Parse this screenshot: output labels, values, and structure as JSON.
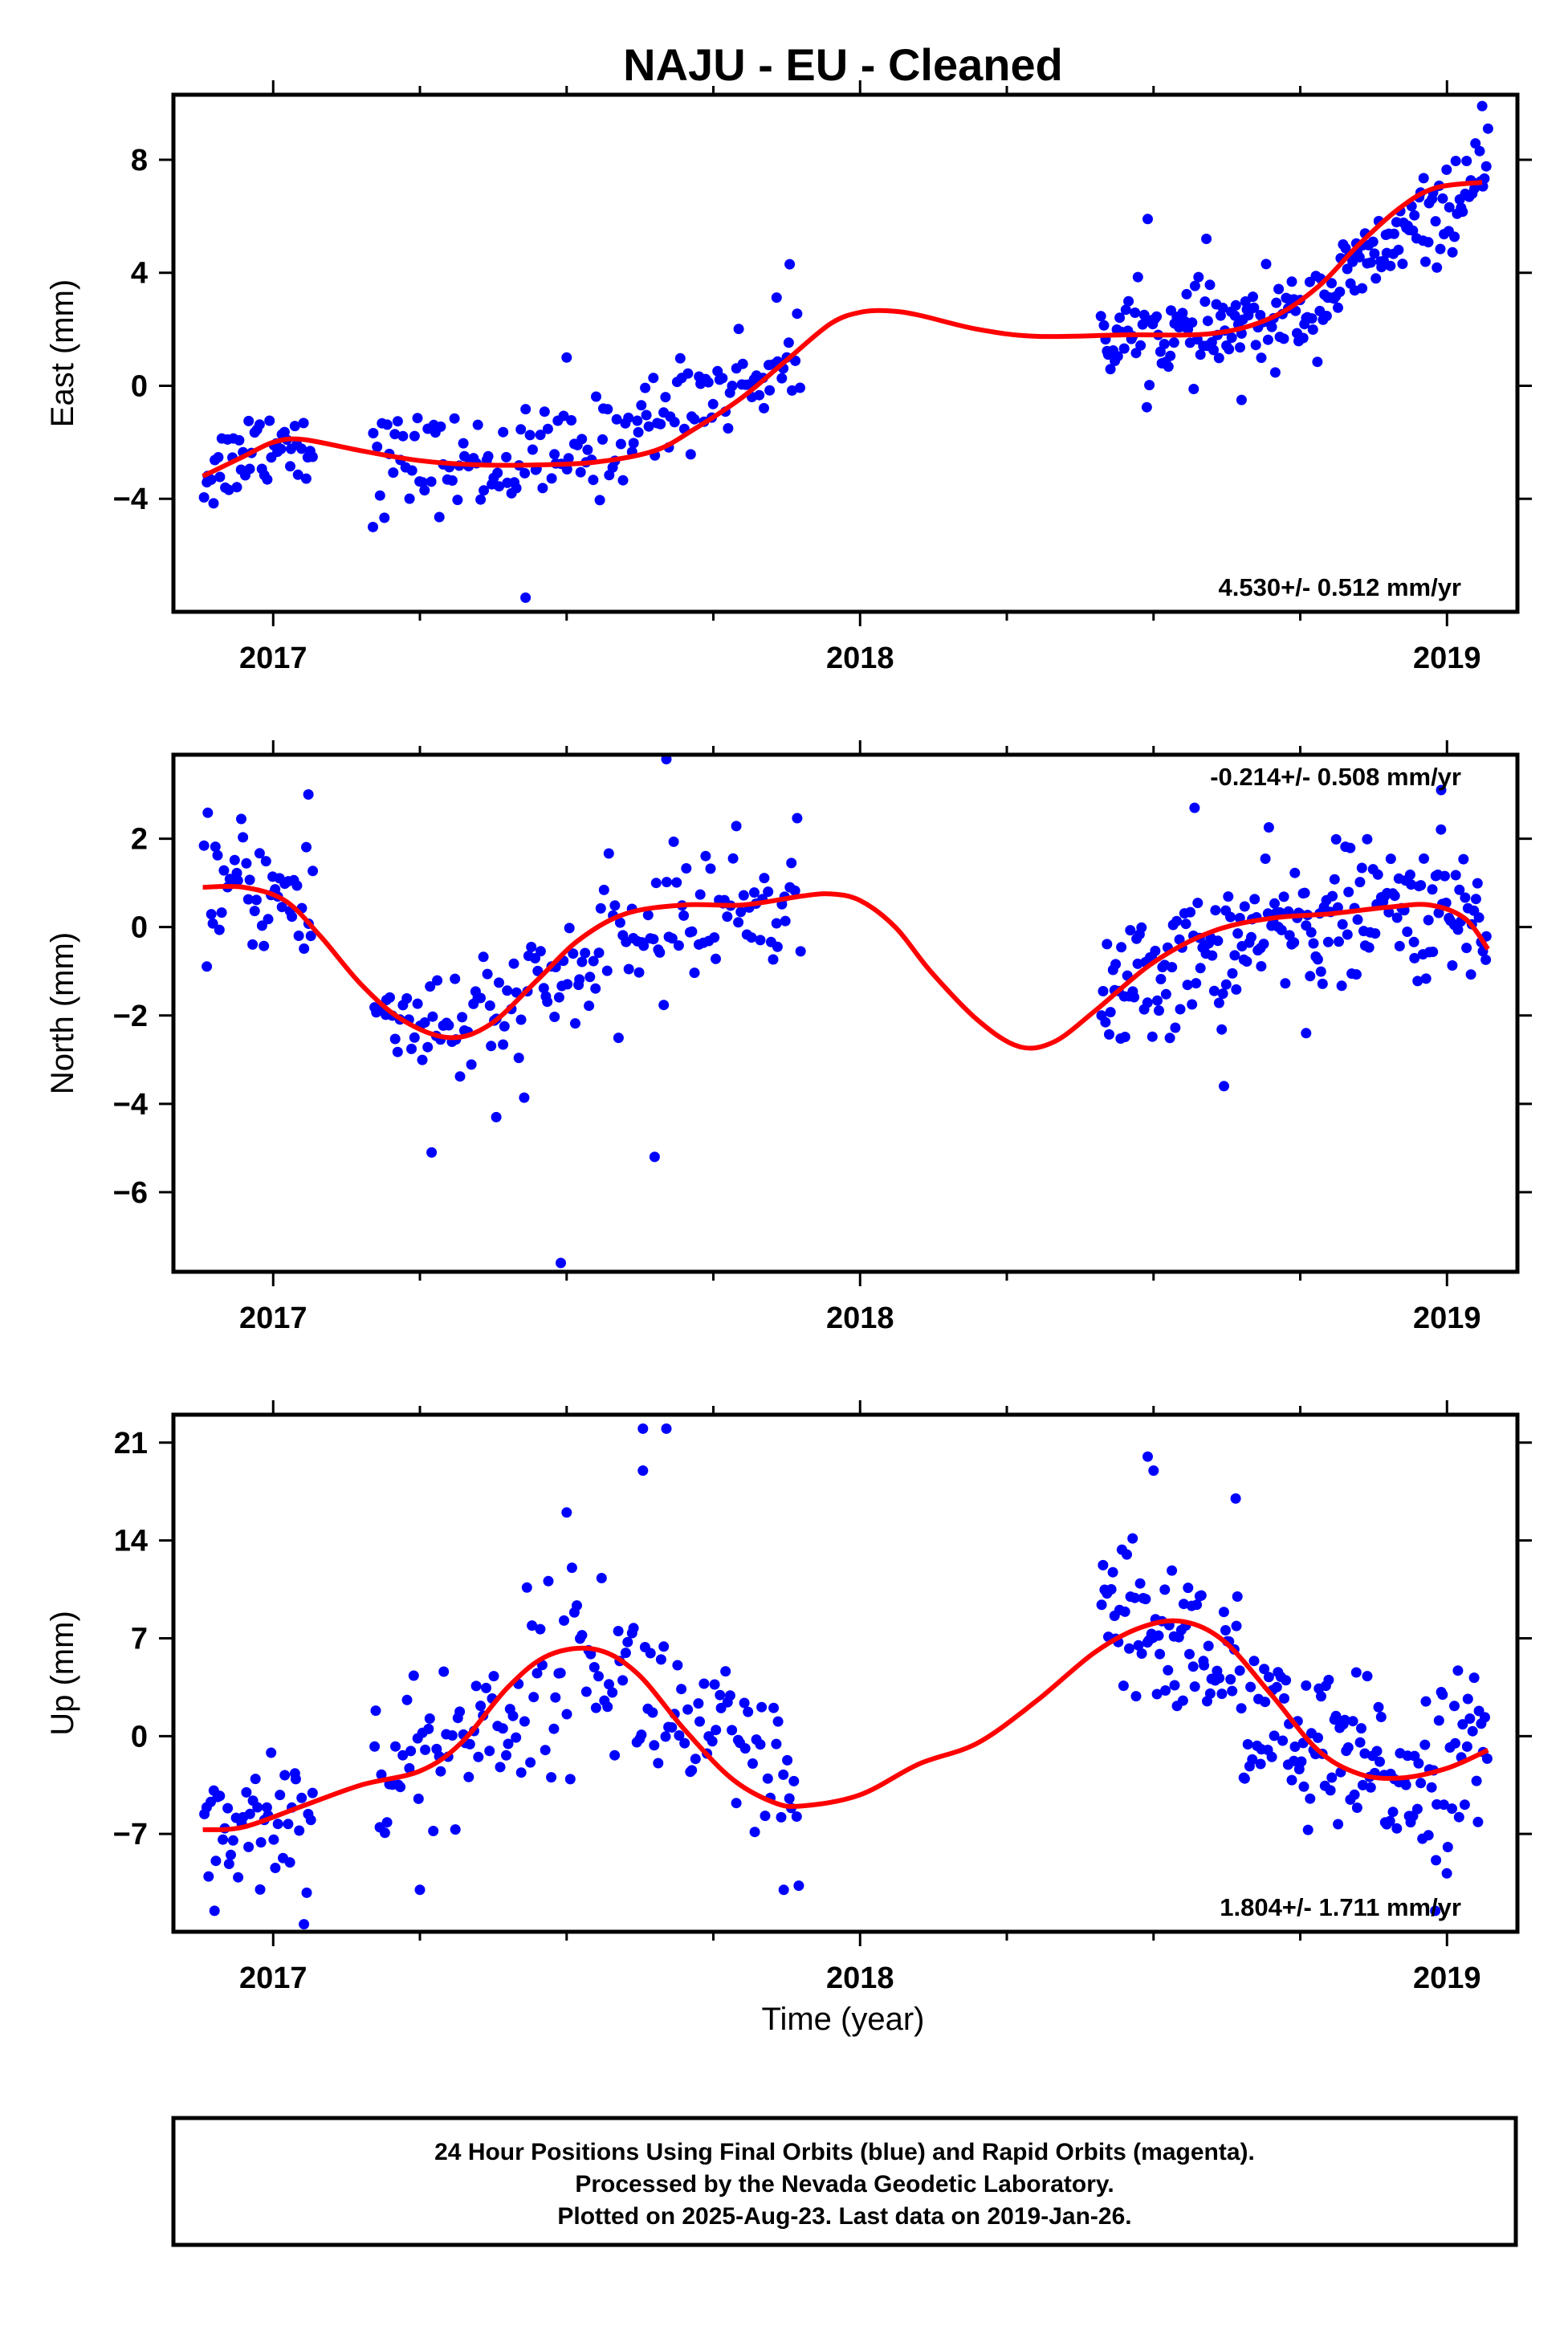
{
  "chart_data": {
    "title": "NAJU  - EU - Cleaned",
    "xlabel": "Time (year)",
    "xlim": [
      2016.83,
      2019.12
    ],
    "x_ticks": [
      2017,
      2018,
      2019
    ],
    "x_tick_labels": [
      "2017",
      "2018",
      "2019"
    ],
    "point_color": "#0000ff",
    "fit_color": "#ff0000",
    "panels": [
      {
        "type": "scatter",
        "name": "east",
        "ylabel": "East (mm)",
        "ylim": [
          -8.0,
          10.3
        ],
        "y_ticks": [
          -4,
          0,
          4,
          8
        ],
        "y_tick_labels": [
          "−4",
          "0",
          "4",
          "8"
        ],
        "rate_label": "4.530+/- 0.512 mm/yr",
        "rate_position": "bottom-right",
        "fit_curve": [
          [
            2016.88,
            -3.2
          ],
          [
            2016.95,
            -2.5
          ],
          [
            2017.0,
            -2.0
          ],
          [
            2017.05,
            -1.9
          ],
          [
            2017.15,
            -2.3
          ],
          [
            2017.25,
            -2.65
          ],
          [
            2017.35,
            -2.8
          ],
          [
            2017.45,
            -2.8
          ],
          [
            2017.55,
            -2.7
          ],
          [
            2017.65,
            -2.3
          ],
          [
            2017.72,
            -1.5
          ],
          [
            2017.8,
            -0.4
          ],
          [
            2017.88,
            1.0
          ],
          [
            2017.95,
            2.2
          ],
          [
            2018.0,
            2.6
          ],
          [
            2018.05,
            2.65
          ],
          [
            2018.1,
            2.5
          ],
          [
            2018.2,
            2.0
          ],
          [
            2018.3,
            1.75
          ],
          [
            2018.45,
            1.8
          ],
          [
            2018.6,
            1.85
          ],
          [
            2018.7,
            2.4
          ],
          [
            2018.78,
            3.5
          ],
          [
            2018.85,
            5.0
          ],
          [
            2018.92,
            6.3
          ],
          [
            2018.98,
            7.0
          ],
          [
            2019.06,
            7.2
          ]
        ],
        "point_clusters": [
          {
            "x0": 2016.88,
            "x1": 2017.07,
            "y": [
              -3.2,
              -2.0,
              -1.9
            ],
            "sd": 0.75,
            "n": 48
          },
          {
            "x0": 2017.17,
            "x1": 2017.9,
            "y": [
              -2.6,
              -2.8,
              -2.4,
              -0.4,
              1.0
            ],
            "sd": 0.85,
            "n": 160
          },
          {
            "x0": 2018.41,
            "x1": 2019.07,
            "y": [
              1.9,
              1.8,
              2.4,
              5.0,
              7.1
            ],
            "sd": 0.75,
            "n": 210
          }
        ],
        "outliers": [
          [
            2017.43,
            -7.5
          ],
          [
            2018.49,
            5.9
          ],
          [
            2018.59,
            5.2
          ],
          [
            2017.88,
            4.3
          ],
          [
            2017.5,
            1.0
          ],
          [
            2019.06,
            9.9
          ],
          [
            2019.07,
            9.1
          ],
          [
            2017.17,
            -5.0
          ],
          [
            2018.65,
            -0.5
          ]
        ]
      },
      {
        "type": "scatter",
        "name": "north",
        "ylabel": "North (mm)",
        "ylim": [
          -7.8,
          3.9
        ],
        "y_ticks": [
          -6,
          -4,
          -2,
          0,
          2
        ],
        "y_tick_labels": [
          "−6",
          "−4",
          "−2",
          "0",
          "2"
        ],
        "rate_label": "-0.214+/- 0.508 mm/yr",
        "rate_position": "top-right",
        "fit_curve": [
          [
            2016.88,
            0.9
          ],
          [
            2016.95,
            0.9
          ],
          [
            2017.02,
            0.6
          ],
          [
            2017.08,
            -0.2
          ],
          [
            2017.15,
            -1.3
          ],
          [
            2017.22,
            -2.1
          ],
          [
            2017.3,
            -2.5
          ],
          [
            2017.37,
            -2.2
          ],
          [
            2017.45,
            -1.2
          ],
          [
            2017.52,
            -0.3
          ],
          [
            2017.6,
            0.3
          ],
          [
            2017.7,
            0.5
          ],
          [
            2017.8,
            0.5
          ],
          [
            2017.9,
            0.7
          ],
          [
            2017.95,
            0.75
          ],
          [
            2018.0,
            0.6
          ],
          [
            2018.06,
            0.0
          ],
          [
            2018.12,
            -1.0
          ],
          [
            2018.2,
            -2.1
          ],
          [
            2018.27,
            -2.7
          ],
          [
            2018.33,
            -2.6
          ],
          [
            2018.4,
            -1.9
          ],
          [
            2018.5,
            -0.8
          ],
          [
            2018.6,
            -0.1
          ],
          [
            2018.7,
            0.2
          ],
          [
            2018.8,
            0.3
          ],
          [
            2018.9,
            0.45
          ],
          [
            2018.97,
            0.5
          ],
          [
            2019.03,
            0.2
          ],
          [
            2019.07,
            -0.5
          ]
        ],
        "point_clusters": [
          {
            "x0": 2016.88,
            "x1": 2017.07,
            "y": [
              0.9,
              0.9,
              0.4
            ],
            "sd": 0.7,
            "n": 48
          },
          {
            "x0": 2017.17,
            "x1": 2017.9,
            "y": [
              -1.9,
              -2.3,
              -0.9,
              0.4,
              0.6
            ],
            "sd": 0.75,
            "n": 160
          },
          {
            "x0": 2018.41,
            "x1": 2019.07,
            "y": [
              -1.6,
              -0.7,
              0.1,
              0.4,
              0.2
            ],
            "sd": 0.75,
            "n": 210
          }
        ],
        "outliers": [
          [
            2017.49,
            -7.6
          ],
          [
            2017.65,
            -5.2
          ],
          [
            2017.27,
            -5.1
          ],
          [
            2017.38,
            -4.3
          ],
          [
            2017.67,
            3.8
          ],
          [
            2018.99,
            3.1
          ],
          [
            2018.57,
            2.7
          ],
          [
            2018.76,
            -2.4
          ],
          [
            2018.62,
            -3.6
          ],
          [
            2017.06,
            3.0
          ]
        ]
      },
      {
        "type": "scatter",
        "name": "up",
        "ylabel": "Up (mm)",
        "ylim": [
          -14.0,
          23.0
        ],
        "y_ticks": [
          -7,
          0,
          7,
          14,
          21
        ],
        "y_tick_labels": [
          "−7",
          "0",
          "7",
          "14",
          "21"
        ],
        "rate_label": "1.804+/- 1.711 mm/yr",
        "rate_position": "bottom-right",
        "fit_curve": [
          [
            2016.88,
            -6.7
          ],
          [
            2016.95,
            -6.5
          ],
          [
            2017.05,
            -5.0
          ],
          [
            2017.15,
            -3.5
          ],
          [
            2017.25,
            -2.5
          ],
          [
            2017.32,
            -0.5
          ],
          [
            2017.4,
            3.5
          ],
          [
            2017.47,
            5.8
          ],
          [
            2017.55,
            6.2
          ],
          [
            2017.62,
            4.5
          ],
          [
            2017.7,
            0.5
          ],
          [
            2017.78,
            -3.0
          ],
          [
            2017.85,
            -4.7
          ],
          [
            2017.9,
            -5.0
          ],
          [
            2018.0,
            -4.2
          ],
          [
            2018.1,
            -2.0
          ],
          [
            2018.2,
            -0.5
          ],
          [
            2018.3,
            2.5
          ],
          [
            2018.4,
            6.0
          ],
          [
            2018.48,
            7.8
          ],
          [
            2018.55,
            8.2
          ],
          [
            2018.62,
            6.8
          ],
          [
            2018.7,
            3.0
          ],
          [
            2018.78,
            -1.0
          ],
          [
            2018.85,
            -2.7
          ],
          [
            2018.92,
            -3.0
          ],
          [
            2019.0,
            -2.3
          ],
          [
            2019.07,
            -1.0
          ]
        ],
        "point_clusters": [
          {
            "x0": 2016.88,
            "x1": 2017.07,
            "y": [
              -6.7,
              -6.0,
              -5.0
            ],
            "sd": 2.9,
            "n": 48
          },
          {
            "x0": 2017.17,
            "x1": 2017.9,
            "y": [
              -3.0,
              0.5,
              6.2,
              0.5,
              -5.0
            ],
            "sd": 3.2,
            "n": 160
          },
          {
            "x0": 2018.41,
            "x1": 2019.07,
            "y": [
              7.8,
              6.8,
              -1.0,
              -3.0,
              -1.2
            ],
            "sd": 3.0,
            "n": 210
          }
        ],
        "outliers": [
          [
            2017.63,
            22.0
          ],
          [
            2017.67,
            22.0
          ],
          [
            2017.63,
            19.0
          ],
          [
            2018.49,
            20.0
          ],
          [
            2018.5,
            19.0
          ],
          [
            2017.25,
            -11.0
          ],
          [
            2017.87,
            -11.0
          ],
          [
            2016.9,
            -12.5
          ],
          [
            2018.98,
            -12.5
          ],
          [
            2018.64,
            17.0
          ],
          [
            2017.5,
            16.0
          ]
        ]
      }
    ]
  },
  "footer": {
    "line1": "24 Hour Positions Using Final Orbits (blue) and Rapid Orbits (magenta).",
    "line2": "Processed by the Nevada Geodetic Laboratory.",
    "line3": "Plotted on 2025-Aug-23. Last data on 2019-Jan-26."
  }
}
